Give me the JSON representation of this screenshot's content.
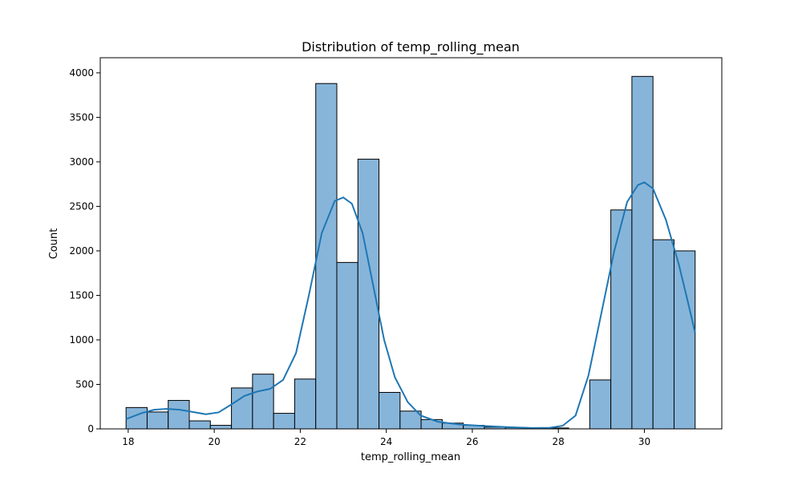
{
  "chart_data": {
    "type": "bar",
    "title": "Distribution of temp_rolling_mean",
    "xlabel": "temp_rolling_mean",
    "ylabel": "Count",
    "xlim": [
      17.35,
      31.8
    ],
    "ylim": [
      0,
      4170
    ],
    "xticks": [
      18,
      20,
      22,
      24,
      26,
      28,
      30
    ],
    "yticks": [
      0,
      500,
      1000,
      1500,
      2000,
      2500,
      3000,
      3500,
      4000
    ],
    "bin_width": 0.49,
    "bins": [
      {
        "x0": 17.95,
        "value": 240
      },
      {
        "x0": 18.44,
        "value": 190
      },
      {
        "x0": 18.93,
        "value": 320
      },
      {
        "x0": 19.42,
        "value": 90
      },
      {
        "x0": 19.91,
        "value": 40
      },
      {
        "x0": 20.4,
        "value": 460
      },
      {
        "x0": 20.89,
        "value": 615
      },
      {
        "x0": 21.38,
        "value": 175
      },
      {
        "x0": 21.87,
        "value": 560
      },
      {
        "x0": 22.36,
        "value": 3880
      },
      {
        "x0": 22.85,
        "value": 1870
      },
      {
        "x0": 23.34,
        "value": 3030
      },
      {
        "x0": 23.83,
        "value": 410
      },
      {
        "x0": 24.32,
        "value": 200
      },
      {
        "x0": 24.81,
        "value": 105
      },
      {
        "x0": 25.3,
        "value": 65
      },
      {
        "x0": 25.79,
        "value": 40
      },
      {
        "x0": 26.28,
        "value": 20
      },
      {
        "x0": 26.77,
        "value": 15
      },
      {
        "x0": 27.26,
        "value": 10
      },
      {
        "x0": 27.75,
        "value": 10
      },
      {
        "x0": 28.24,
        "value": 0
      },
      {
        "x0": 28.73,
        "value": 550
      },
      {
        "x0": 29.22,
        "value": 2460
      },
      {
        "x0": 29.71,
        "value": 3960
      },
      {
        "x0": 30.2,
        "value": 2125
      },
      {
        "x0": 30.69,
        "value": 2000
      }
    ],
    "kde": [
      [
        17.95,
        110
      ],
      [
        18.3,
        175
      ],
      [
        18.6,
        215
      ],
      [
        18.9,
        225
      ],
      [
        19.2,
        215
      ],
      [
        19.5,
        190
      ],
      [
        19.8,
        165
      ],
      [
        20.1,
        185
      ],
      [
        20.4,
        275
      ],
      [
        20.7,
        370
      ],
      [
        21.0,
        420
      ],
      [
        21.3,
        450
      ],
      [
        21.6,
        550
      ],
      [
        21.9,
        850
      ],
      [
        22.2,
        1500
      ],
      [
        22.5,
        2200
      ],
      [
        22.8,
        2560
      ],
      [
        23.0,
        2600
      ],
      [
        23.2,
        2530
      ],
      [
        23.45,
        2200
      ],
      [
        23.7,
        1600
      ],
      [
        23.95,
        1000
      ],
      [
        24.2,
        580
      ],
      [
        24.5,
        300
      ],
      [
        24.8,
        150
      ],
      [
        25.2,
        80
      ],
      [
        25.7,
        50
      ],
      [
        26.2,
        35
      ],
      [
        26.8,
        20
      ],
      [
        27.4,
        10
      ],
      [
        27.8,
        12
      ],
      [
        28.1,
        35
      ],
      [
        28.4,
        150
      ],
      [
        28.7,
        600
      ],
      [
        29.0,
        1300
      ],
      [
        29.3,
        2000
      ],
      [
        29.6,
        2550
      ],
      [
        29.85,
        2740
      ],
      [
        30.0,
        2770
      ],
      [
        30.2,
        2700
      ],
      [
        30.5,
        2350
      ],
      [
        30.8,
        1850
      ],
      [
        31.0,
        1450
      ],
      [
        31.18,
        1080
      ]
    ],
    "bar_color": "#87b5da",
    "bar_edge_color": "#000000",
    "line_color": "#1f77b4",
    "grid": false,
    "legend": "none"
  }
}
